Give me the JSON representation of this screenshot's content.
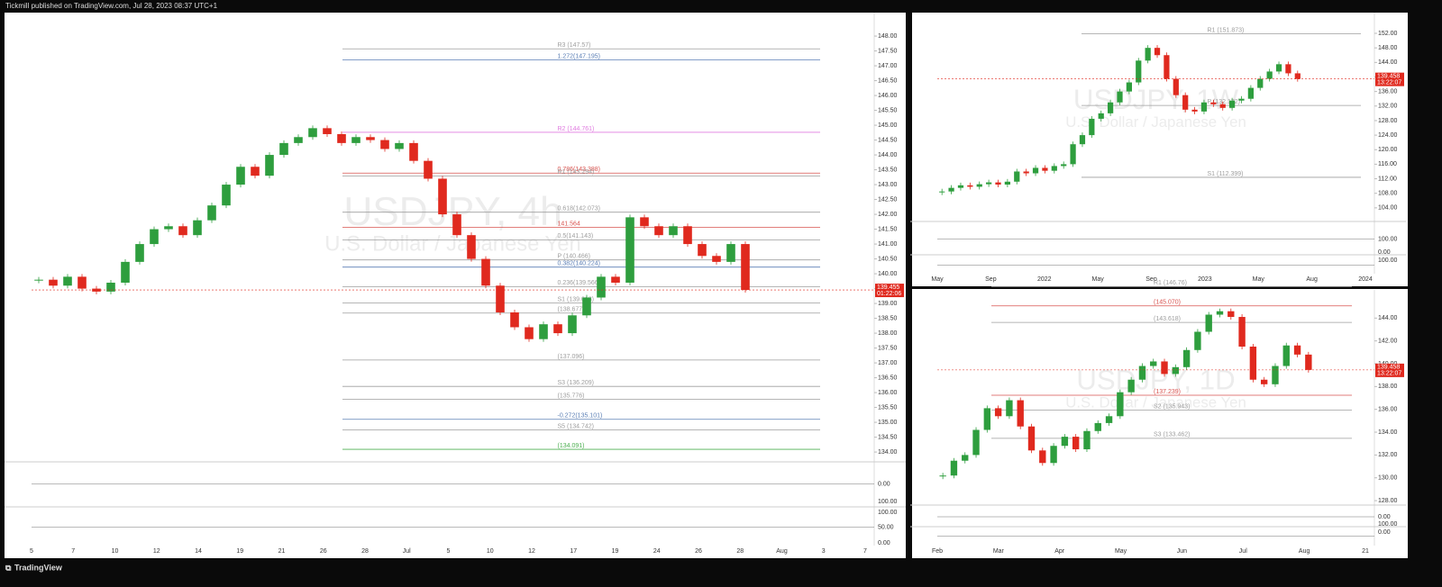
{
  "header": {
    "text": "Tickmill published on TradingView.com, Jul 28, 2023 08:37 UTC+1"
  },
  "footer": {
    "brand": "TradingView"
  },
  "panels": [
    {
      "symbol": "USDJPY, 4h",
      "name": "U.S. Dollar / Japanese Yen",
      "ylim": [
        133.76,
        148.79
      ],
      "yticks": [
        {
          "value": 134,
          "label": "134.00"
        },
        {
          "value": 134.5,
          "label": "134.50"
        },
        {
          "value": 135,
          "label": "135.00"
        },
        {
          "value": 135.5,
          "label": "135.50"
        },
        {
          "value": 136,
          "label": "136.00"
        },
        {
          "value": 136.5,
          "label": "136.50"
        },
        {
          "value": 137,
          "label": "137.00"
        },
        {
          "value": 137.5,
          "label": "137.50"
        },
        {
          "value": 138,
          "label": "138.00"
        },
        {
          "value": 138.5,
          "label": "138.50"
        },
        {
          "value": 139,
          "label": "139.00"
        },
        {
          "value": 139.5,
          "label": "139.50"
        },
        {
          "value": 140,
          "label": "140.00"
        },
        {
          "value": 140.5,
          "label": "140.50"
        },
        {
          "value": 141,
          "label": "141.00"
        },
        {
          "value": 141.5,
          "label": "141.50"
        },
        {
          "value": 142,
          "label": "142.00"
        },
        {
          "value": 142.5,
          "label": "142.50"
        },
        {
          "value": 143,
          "label": "143.00"
        },
        {
          "value": 143.5,
          "label": "143.50"
        },
        {
          "value": 144,
          "label": "144.00"
        },
        {
          "value": 144.5,
          "label": "144.50"
        },
        {
          "value": 145,
          "label": "145.00"
        },
        {
          "value": 145.5,
          "label": "145.50"
        },
        {
          "value": 146,
          "label": "146.00"
        },
        {
          "value": 146.5,
          "label": "146.50"
        },
        {
          "value": 147,
          "label": "147.00"
        },
        {
          "value": 147.5,
          "label": "147.50"
        },
        {
          "value": 148,
          "label": "148.00"
        }
      ],
      "xticks": [
        "5",
        "7",
        "10",
        "12",
        "14",
        "19",
        "21",
        "26",
        "28",
        "Jul",
        "5",
        "10",
        "12",
        "17",
        "19",
        "24",
        "26",
        "28",
        "Aug",
        "3",
        "7"
      ],
      "closes": [
        139.8,
        139.6,
        139.9,
        139.5,
        139.4,
        139.7,
        140.4,
        141.0,
        141.5,
        141.6,
        141.3,
        141.8,
        142.3,
        143.0,
        143.6,
        143.3,
        144.0,
        144.4,
        144.6,
        144.9,
        144.7,
        144.4,
        144.6,
        144.5,
        144.2,
        144.4,
        143.8,
        143.2,
        142.0,
        141.3,
        140.5,
        139.6,
        138.7,
        138.2,
        137.8,
        138.3,
        138.0,
        138.6,
        139.2,
        139.9,
        139.7,
        141.9,
        141.6,
        141.3,
        141.6,
        141.0,
        140.6,
        140.4,
        141.0,
        139.455
      ],
      "levels": [
        {
          "label": "R3 (147.57)",
          "value": 147.57,
          "color": "#9e9e9e"
        },
        {
          "label": "1.272(147.195)",
          "value": 147.195,
          "color": "#5b7fb5"
        },
        {
          "label": "R2 (144.761)",
          "value": 144.761,
          "color": "#e07ce0"
        },
        {
          "label": "0.786(143.388)",
          "value": 143.388,
          "color": "#d9534f"
        },
        {
          "label": "R1 (143.294)",
          "value": 143.294,
          "color": "#9e9e9e"
        },
        {
          "label": "0.618(142.073)",
          "value": 142.073,
          "color": "#9e9e9e"
        },
        {
          "label": "141.564",
          "value": 141.564,
          "color": "#d9534f"
        },
        {
          "label": "0.5(141.143)",
          "value": 141.143,
          "color": "#9e9e9e"
        },
        {
          "label": "P (140.466)",
          "value": 140.466,
          "color": "#9e9e9e"
        },
        {
          "label": "0.382(140.224)",
          "value": 140.224,
          "color": "#5b7fb5"
        },
        {
          "label": "0.236(139.566)",
          "value": 139.566,
          "color": "#9e9e9e"
        },
        {
          "label": "S1 (139.018)",
          "value": 139.018,
          "color": "#9e9e9e"
        },
        {
          "label": "(138.677)",
          "value": 138.677,
          "color": "#9e9e9e"
        },
        {
          "label": "(137.096)",
          "value": 137.096,
          "color": "#9e9e9e"
        },
        {
          "label": "S3 (136.209)",
          "value": 136.209,
          "color": "#9e9e9e"
        },
        {
          "label": "(135.776)",
          "value": 135.776,
          "color": "#9e9e9e"
        },
        {
          "label": "-0.272(135.101)",
          "value": 135.101,
          "color": "#5b7fb5"
        },
        {
          "label": "S5 (134.742)",
          "value": 134.742,
          "color": "#9e9e9e"
        },
        {
          "label": "(134.091)",
          "value": 134.091,
          "color": "#4caf50"
        }
      ],
      "price_label": "139.455",
      "timer": "01:22:06",
      "indicator_labels": [
        "0.00",
        "100.00",
        "100.00",
        "50.00",
        "0.00"
      ]
    },
    {
      "symbol": "USDJPY, 1W",
      "name": "U.S. Dollar / Japanese Yen",
      "ylim": [
        100.5,
        157.7
      ],
      "yticks": [
        {
          "value": 104,
          "label": "104.00"
        },
        {
          "value": 108,
          "label": "108.00"
        },
        {
          "value": 112,
          "label": "112.00"
        },
        {
          "value": 116,
          "label": "116.00"
        },
        {
          "value": 120,
          "label": "120.00"
        },
        {
          "value": 124,
          "label": "124.00"
        },
        {
          "value": 128,
          "label": "128.00"
        },
        {
          "value": 132,
          "label": "132.00"
        },
        {
          "value": 136,
          "label": "136.00"
        },
        {
          "value": 140,
          "label": "140.00"
        },
        {
          "value": 144,
          "label": "144.00"
        },
        {
          "value": 148,
          "label": "148.00"
        },
        {
          "value": 152,
          "label": "152.00"
        }
      ],
      "xticks": [
        "May",
        "Sep",
        "2022",
        "May",
        "Sep",
        "2023",
        "May",
        "Aug",
        "2024"
      ],
      "closes": [
        108.5,
        109.5,
        110.2,
        109.8,
        110.5,
        111,
        110.4,
        111.2,
        114,
        113.5,
        115,
        114.2,
        115.5,
        116,
        121.5,
        124,
        128.5,
        130,
        133,
        136,
        138.5,
        144.5,
        148,
        146,
        139.5,
        135,
        131,
        130.5,
        133,
        132.5,
        131.5,
        133.5,
        134,
        137,
        139.5,
        141.5,
        143.5,
        141,
        139.458
      ],
      "levels": [
        {
          "label": "R1 (151.873)",
          "value": 151.873,
          "color": "#9e9e9e"
        },
        {
          "label": "P (132.172)",
          "value": 132.172,
          "color": "#9e9e9e"
        },
        {
          "label": "S1 (112.399)",
          "value": 112.399,
          "color": "#9e9e9e"
        }
      ],
      "price_label": "139.458",
      "timer": "13:22:07",
      "indicator_labels": [
        "100.00",
        "0.00",
        "100.00"
      ]
    },
    {
      "symbol": "USDJPY, 1D",
      "name": "U.S. Dollar / Japanese Yen",
      "ylim": [
        127.69,
        146.47
      ],
      "yticks": [
        {
          "value": 128,
          "label": "128.00"
        },
        {
          "value": 130,
          "label": "130.00"
        },
        {
          "value": 132,
          "label": "132.00"
        },
        {
          "value": 134,
          "label": "134.00"
        },
        {
          "value": 136,
          "label": "136.00"
        },
        {
          "value": 138,
          "label": "138.00"
        },
        {
          "value": 140,
          "label": "140.00"
        },
        {
          "value": 142,
          "label": "142.00"
        },
        {
          "value": 144,
          "label": "144.00"
        }
      ],
      "xticks": [
        "Feb",
        "Mar",
        "Apr",
        "May",
        "Jun",
        "Jul",
        "Aug",
        "21"
      ],
      "closes": [
        130.2,
        131.5,
        132,
        134.2,
        136.1,
        135.4,
        136.8,
        134.5,
        132.4,
        131.3,
        132.8,
        133.6,
        132.5,
        134.1,
        134.8,
        135.4,
        137.5,
        138.6,
        139.8,
        140.2,
        139.1,
        139.7,
        141.2,
        142.8,
        144.3,
        144.6,
        144.1,
        141.5,
        138.6,
        138.2,
        139.8,
        141.6,
        140.8,
        139.458
      ],
      "levels": [
        {
          "label": "R1 (146.76)",
          "value": 146.76,
          "color": "#9e9e9e"
        },
        {
          "label": "(145.070)",
          "value": 145.07,
          "color": "#d9534f"
        },
        {
          "label": "(143.618)",
          "value": 143.618,
          "color": "#9e9e9e"
        },
        {
          "label": "(137.239)",
          "value": 137.239,
          "color": "#d9534f"
        },
        {
          "label": "S2 (135.943)",
          "value": 135.943,
          "color": "#9e9e9e"
        },
        {
          "label": "S3 (133.462)",
          "value": 133.462,
          "color": "#9e9e9e"
        }
      ],
      "price_label": "139.458",
      "timer": "13:22:07",
      "indicator_labels": [
        "0.00",
        "100.00",
        "0.00"
      ]
    }
  ]
}
